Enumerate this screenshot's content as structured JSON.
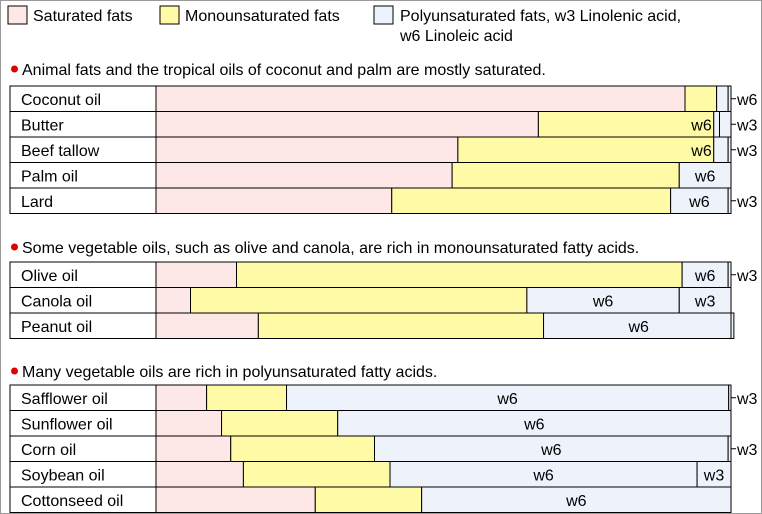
{
  "chart_data": {
    "type": "bar",
    "stacked": true,
    "orientation": "horizontal",
    "xlim": [
      0,
      100
    ],
    "unit": "%",
    "colors": {
      "saturated": "#fde7e7",
      "monounsaturated": "#fffaa5",
      "polyunsaturated": "#eef3fb",
      "border": "#000000",
      "bullet": "#e00000"
    },
    "legend": {
      "position": "top",
      "entries": [
        {
          "key": "saturated",
          "label": "Saturated fats"
        },
        {
          "key": "monounsaturated",
          "label": "Monounsaturated fats"
        },
        {
          "key": "polyunsaturated",
          "label": "Polyunsaturated fats, w3 Linolenic acid,",
          "label2": "w6 Linoleic acid"
        }
      ]
    },
    "groups": [
      {
        "heading": "Animal fats and the tropical oils of coconut and palm are mostly saturated.",
        "rows": [
          {
            "name": "Coconut oil",
            "saturated": 92.0,
            "mono": 5.5,
            "w6": 2.0,
            "w6_label": "",
            "w3": 0.5,
            "side_label": "w6"
          },
          {
            "name": "Butter",
            "saturated": 66.5,
            "mono": 30.5,
            "w6": 1.0,
            "w6_label": "w6",
            "w3": 2.0,
            "side_label": "w3"
          },
          {
            "name": "Beef tallow",
            "saturated": 52.5,
            "mono": 44.5,
            "w6": 2.5,
            "w6_label": "w6",
            "w3": 0.5,
            "side_label": "w3"
          },
          {
            "name": "Palm oil",
            "saturated": 51.5,
            "mono": 39.5,
            "w6": 9.0,
            "w6_label": "w6",
            "w3": 0,
            "side_label": ""
          },
          {
            "name": "Lard",
            "saturated": 41.0,
            "mono": 48.5,
            "w6": 10.0,
            "w6_label": "w6",
            "w3": 0.5,
            "side_label": "w3"
          }
        ]
      },
      {
        "heading": "Some vegetable oils, such as olive and canola, are rich in monounsaturated fatty acids.",
        "rows": [
          {
            "name": "Olive oil",
            "saturated": 14.0,
            "mono": 77.5,
            "w6": 8.0,
            "w6_label": "w6",
            "w3": 0.5,
            "side_label": "w3"
          },
          {
            "name": "Canola oil",
            "saturated": 6.0,
            "mono": 58.5,
            "w6": 26.5,
            "w6_label": "w6",
            "w3": 9.0,
            "side_label": "",
            "w3_label": "w3"
          },
          {
            "name": "Peanut oil",
            "saturated": 17.8,
            "mono": 49.6,
            "w6": 33.1,
            "w6_label": "w6",
            "w3": 0,
            "side_label": ""
          }
        ]
      },
      {
        "heading": "Many vegetable oils are rich in polyunsaturated fatty acids.",
        "rows": [
          {
            "name": "Safflower oil",
            "saturated": 8.8,
            "mono": 13.9,
            "w6": 76.9,
            "w6_label": "w6",
            "w3": 0.4,
            "side_label": "w3"
          },
          {
            "name": "Sunflower oil",
            "saturated": 11.4,
            "mono": 20.2,
            "w6": 68.4,
            "w6_label": "w6",
            "w3": 0,
            "side_label": ""
          },
          {
            "name": "Corn oil",
            "saturated": 13.0,
            "mono": 25.0,
            "w6": 61.5,
            "w6_label": "w6",
            "w3": 0.5,
            "side_label": "w3"
          },
          {
            "name": "Soybean oil",
            "saturated": 15.2,
            "mono": 25.5,
            "w6": 53.4,
            "w6_label": "w6",
            "w3": 5.9,
            "side_label": "",
            "w3_label": "w3"
          },
          {
            "name": "Cottonseed oil",
            "saturated": 27.7,
            "mono": 18.5,
            "w6": 53.8,
            "w6_label": "w6",
            "w3": 0,
            "side_label": ""
          }
        ]
      }
    ]
  }
}
